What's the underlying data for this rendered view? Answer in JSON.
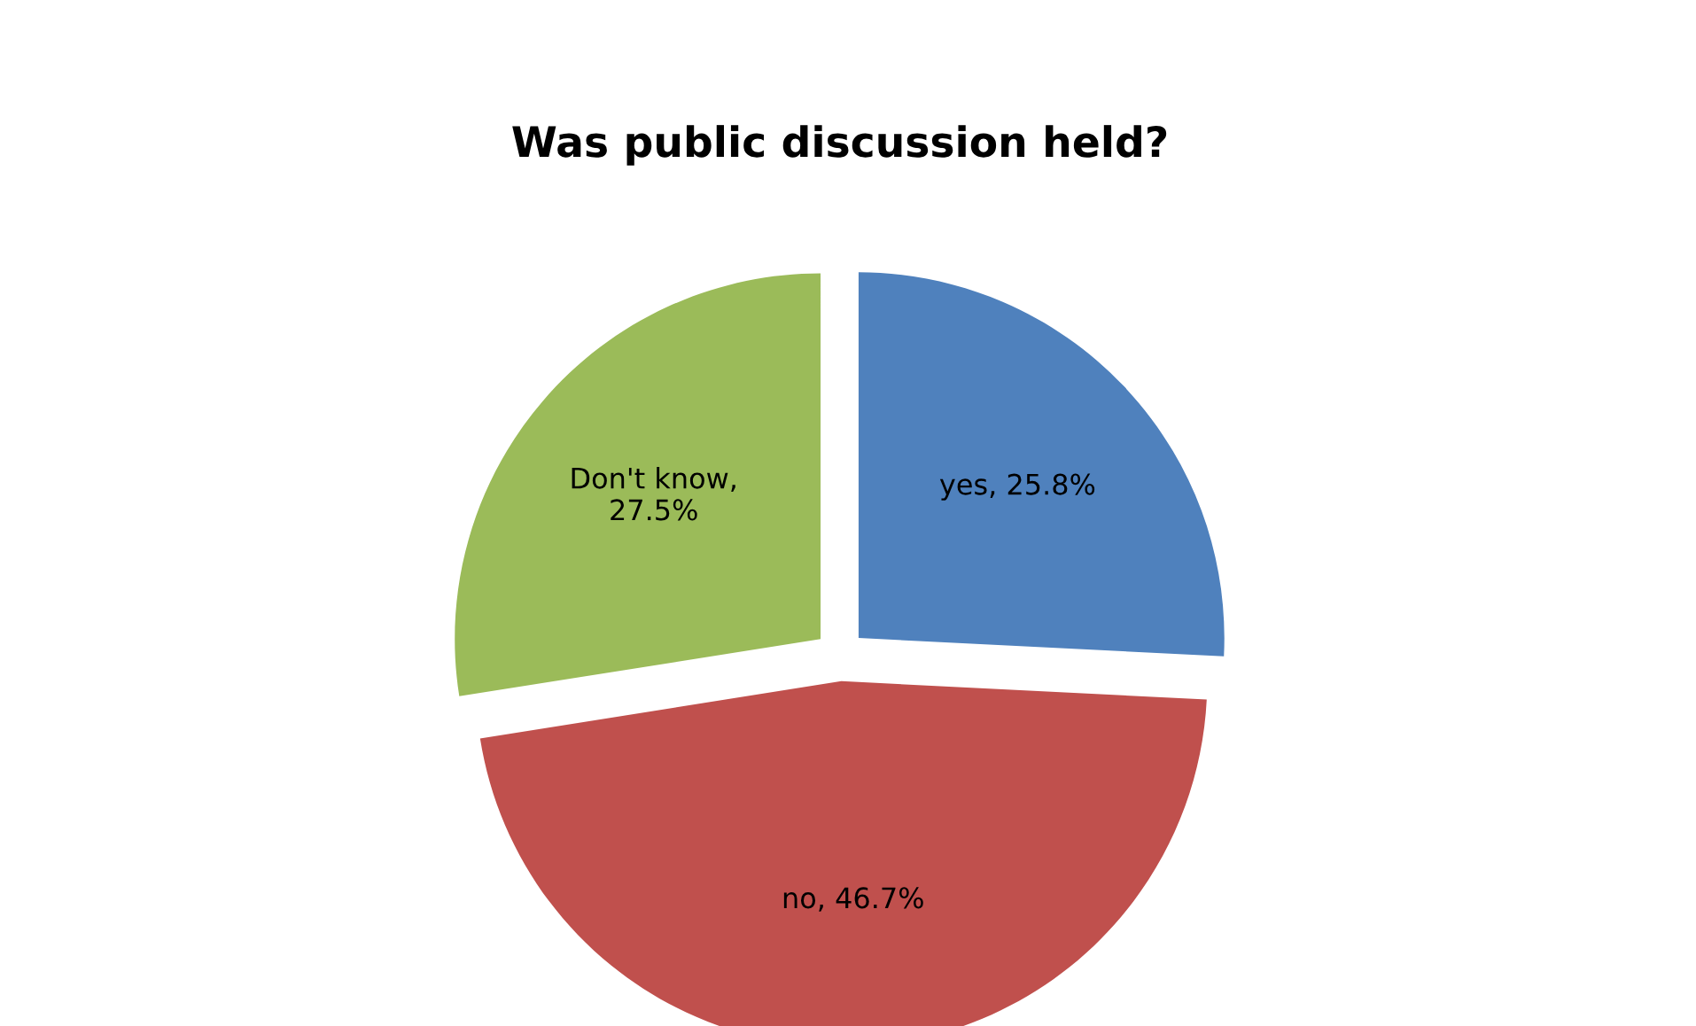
{
  "chart_data": {
    "type": "pie",
    "title": "Was public discussion held?",
    "categories": [
      "yes, 25.8%",
      "no, 46.7%",
      "Don't know, 27.5%"
    ],
    "values": [
      25.8,
      46.7,
      27.5
    ],
    "colors": [
      "#4f81bd",
      "#c0504d",
      "#9bbb59"
    ],
    "legend": false
  }
}
